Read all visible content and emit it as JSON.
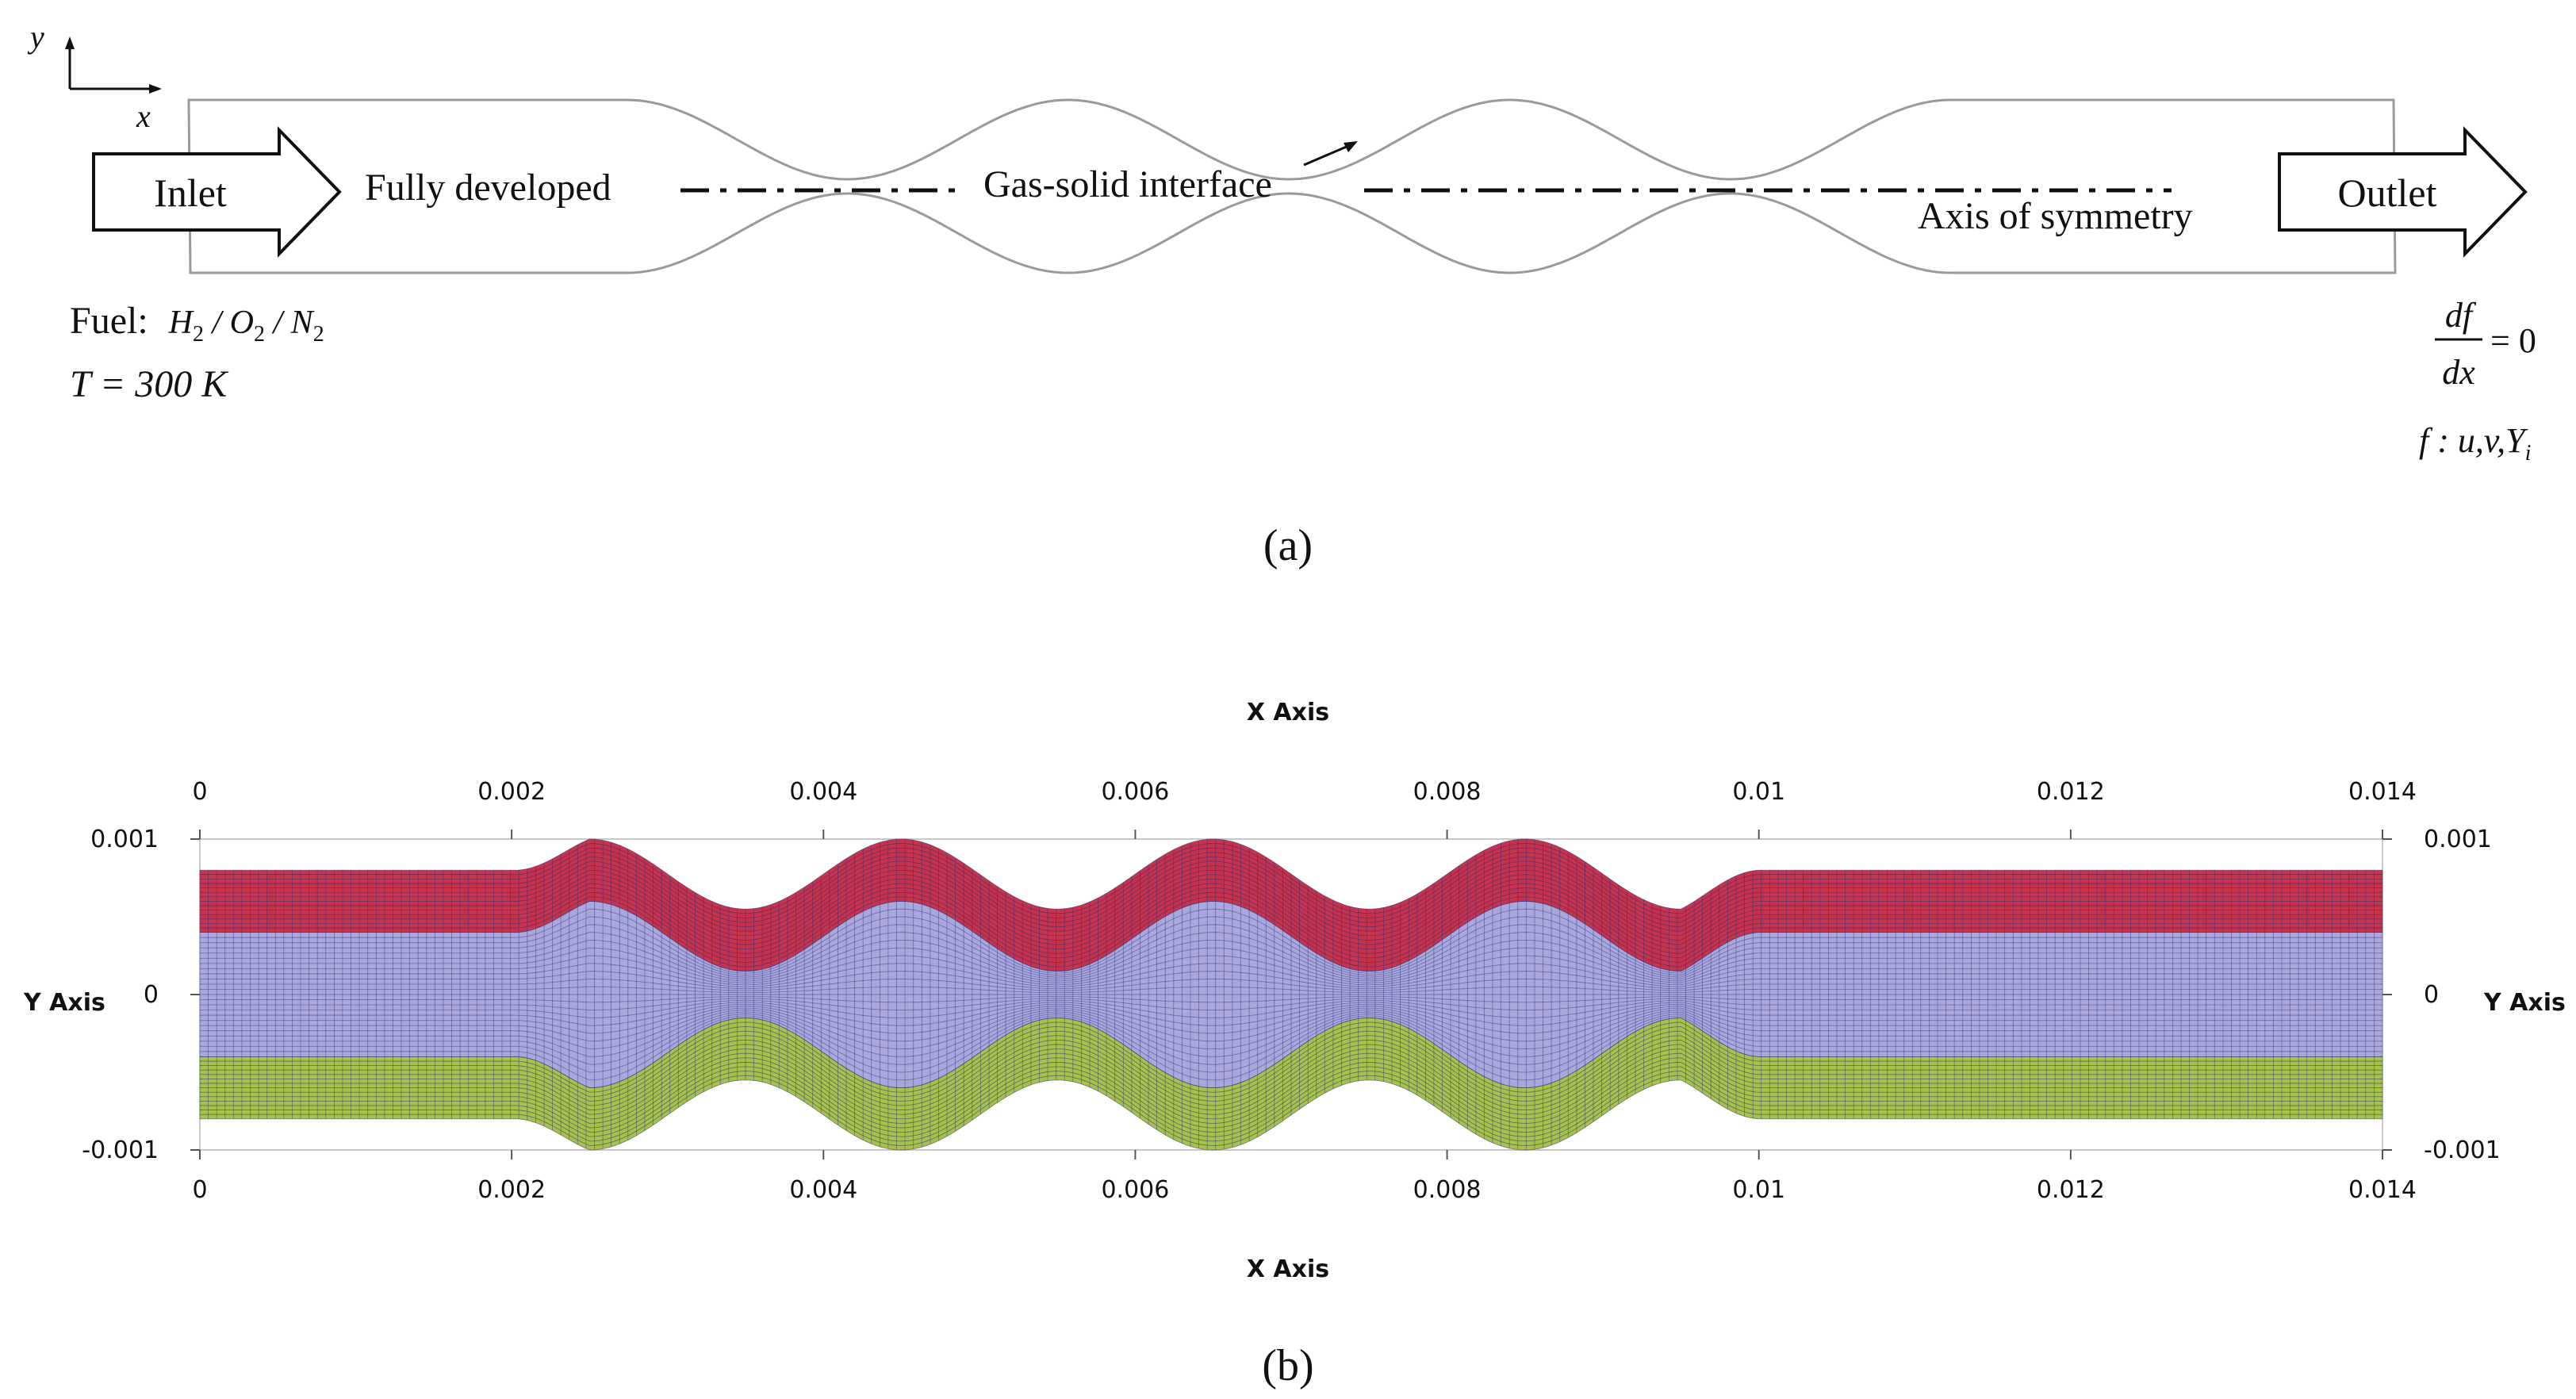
{
  "panel_a": {
    "caption": "(a)",
    "coord_y": "y",
    "coord_x": "x",
    "inlet": "Inlet",
    "outlet": "Outlet",
    "fully_developed": "Fully developed",
    "interface": "Gas-solid interface",
    "symmetry": "Axis of symmetry",
    "fuel_label": "Fuel:",
    "fuel_species": [
      "H",
      "2",
      " / O",
      "2",
      " / N",
      "2"
    ],
    "temperature": "T = 300 K",
    "bc_num": "df",
    "bc_den": "dx",
    "bc_rhs": "= 0",
    "bc_vars": "f : u,v,Y",
    "bc_sub": "i"
  },
  "panel_b": {
    "caption": "(b)",
    "xlabel": "X Axis",
    "ylabel": "Y Axis",
    "x_ticks": [
      "0",
      "0.002",
      "0.004",
      "0.006",
      "0.008",
      "0.01",
      "0.012",
      "0.014"
    ],
    "y_ticks": [
      "0.001",
      "0",
      "-0.001"
    ],
    "colors": {
      "solid_upper": "#c8324a",
      "fluid": "#a9a7dc",
      "solid_lower": "#a6c24a",
      "grid": "#2a2f7a",
      "frame": "#c8c8c8"
    }
  },
  "chart_data": {
    "type": "mesh",
    "xlabel": "X Axis",
    "ylabel": "Y Axis",
    "xlim": [
      0,
      0.014
    ],
    "ylim": [
      -0.001,
      0.001
    ],
    "grid": true,
    "regions": [
      "upper solid wall",
      "fluid",
      "lower solid wall"
    ],
    "channel_outer_half_height_straight": 0.0008,
    "fluid_half_height_straight": 0.0004,
    "wavy_section_x": [
      0.002,
      0.01
    ],
    "wave_period": 0.002,
    "wave_peaks_x": [
      0.0025,
      0.0045,
      0.0065,
      0.0085
    ],
    "wave_troughs_x": [
      0.0035,
      0.0055,
      0.0075,
      0.0095
    ],
    "outer_boundary_peak": 0.001,
    "outer_boundary_trough": 0.00055,
    "fluid_boundary_peak": 0.0006,
    "fluid_boundary_trough": 0.00015
  }
}
